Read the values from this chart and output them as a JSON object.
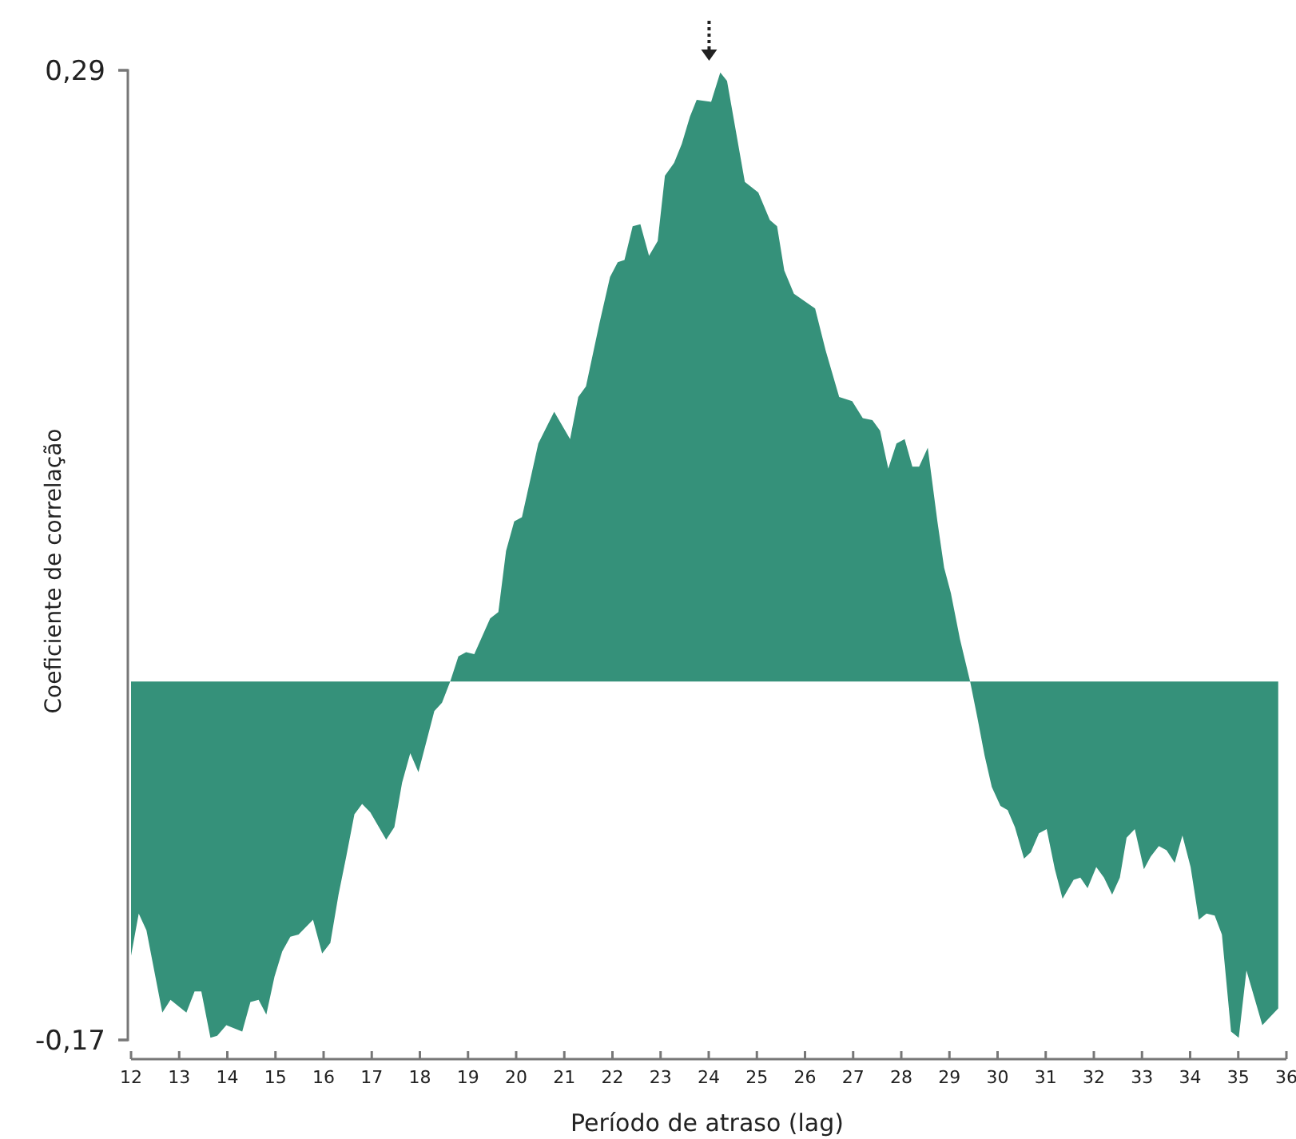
{
  "chart_data": {
    "type": "area",
    "xlabel": "Período de atraso (lag)",
    "ylabel": "Coeficiente de correlação",
    "xlim": [
      12,
      36
    ],
    "xticks": [
      12,
      13,
      14,
      15,
      16,
      17,
      18,
      19,
      20,
      21,
      22,
      23,
      24,
      25,
      26,
      27,
      28,
      29,
      30,
      31,
      32,
      33,
      34,
      35,
      36
    ],
    "ylim": [
      -0.17,
      0.29
    ],
    "yticks": [
      {
        "value": 0.29,
        "label": "0,29"
      },
      {
        "value": -0.17,
        "label": "-0,17"
      }
    ],
    "grid": false,
    "series": [
      {
        "color": "#35917a",
        "x": [
          12,
          12.16,
          12.32,
          12.65,
          12.82,
          13.15,
          13.32,
          13.46,
          13.65,
          13.79,
          13.98,
          14.31,
          14.48,
          14.65,
          14.81,
          14.98,
          15.14,
          15.31,
          15.48,
          15.78,
          15.97,
          16.14,
          16.31,
          16.47,
          16.64,
          16.8,
          16.97,
          17.3,
          17.47,
          17.63,
          17.8,
          17.97,
          18.3,
          18.46,
          18.63,
          18.8,
          18.96,
          19.13,
          19.46,
          19.63,
          19.79,
          19.96,
          20.12,
          20.46,
          20.79,
          21.12,
          21.29,
          21.45,
          21.73,
          21.95,
          22.11,
          22.25,
          22.42,
          22.58,
          22.76,
          22.94,
          23.09,
          23.28,
          23.44,
          23.61,
          23.75,
          24.05,
          24.24,
          24.38,
          24.75,
          25.03,
          25.27,
          25.42,
          25.57,
          25.77,
          26.21,
          26.43,
          26.71,
          26.98,
          27.2,
          27.4,
          27.56,
          27.73,
          27.9,
          28.07,
          28.23,
          28.37,
          28.55,
          28.75,
          28.89,
          29.03,
          29.22,
          29.43,
          29.58,
          29.73,
          29.88,
          30.06,
          30.21,
          30.36,
          30.55,
          30.69,
          30.86,
          31.02,
          31.19,
          31.35,
          31.58,
          31.72,
          31.87,
          32.05,
          32.21,
          32.38,
          32.54,
          32.68,
          32.85,
          33.04,
          33.18,
          33.35,
          33.51,
          33.68,
          33.84,
          34.01,
          34.18,
          34.34,
          34.51,
          34.66,
          34.85,
          35.01,
          35.17,
          35.5,
          35.83
        ],
        "values": [
          -0.13,
          -0.11,
          -0.118,
          -0.157,
          -0.151,
          -0.157,
          -0.147,
          -0.147,
          -0.169,
          -0.168,
          -0.163,
          -0.166,
          -0.152,
          -0.151,
          -0.158,
          -0.14,
          -0.128,
          -0.121,
          -0.12,
          -0.113,
          -0.129,
          -0.124,
          -0.101,
          -0.083,
          -0.063,
          -0.058,
          -0.062,
          -0.075,
          -0.069,
          -0.048,
          -0.034,
          -0.043,
          -0.014,
          -0.01,
          0,
          0.012,
          0.014,
          0.013,
          0.03,
          0.033,
          0.062,
          0.076,
          0.078,
          0.113,
          0.128,
          0.115,
          0.135,
          0.14,
          0.17,
          0.192,
          0.199,
          0.2,
          0.216,
          0.217,
          0.202,
          0.209,
          0.24,
          0.246,
          0.255,
          0.268,
          0.276,
          0.275,
          0.289,
          0.285,
          0.237,
          0.232,
          0.219,
          0.216,
          0.195,
          0.184,
          0.177,
          0.157,
          0.135,
          0.133,
          0.125,
          0.124,
          0.119,
          0.101,
          0.113,
          0.115,
          0.102,
          0.102,
          0.111,
          0.076,
          0.054,
          0.042,
          0.02,
          0,
          -0.017,
          -0.035,
          -0.05,
          -0.059,
          -0.061,
          -0.069,
          -0.084,
          -0.081,
          -0.072,
          -0.07,
          -0.089,
          -0.103,
          -0.094,
          -0.093,
          -0.098,
          -0.088,
          -0.093,
          -0.101,
          -0.093,
          -0.074,
          -0.07,
          -0.089,
          -0.083,
          -0.078,
          -0.08,
          -0.086,
          -0.073,
          -0.088,
          -0.113,
          -0.11,
          -0.111,
          -0.12,
          -0.166,
          -0.169,
          -0.137,
          -0.163,
          -0.155
        ]
      }
    ]
  }
}
